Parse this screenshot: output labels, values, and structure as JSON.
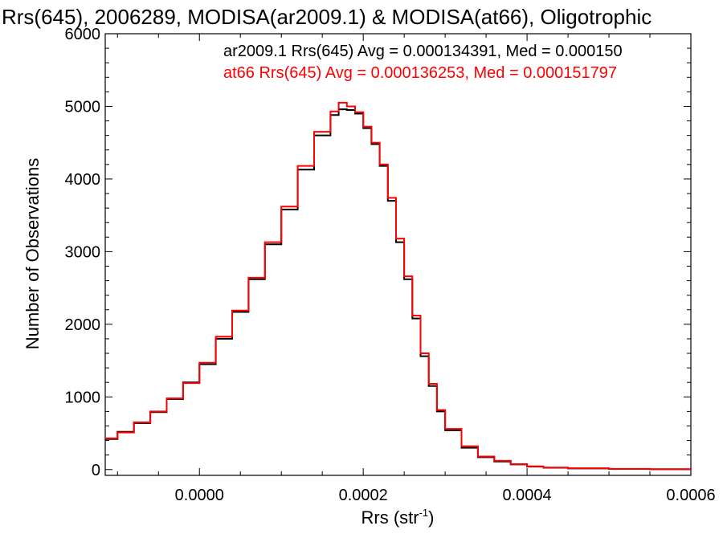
{
  "chart_data": {
    "type": "line",
    "title": "Rrs(645), 2006289, MODISA(ar2009.1) & MODISA(at66), Oligotrophic",
    "xlabel": "Rrs (str",
    "xlabel_sup": "-1",
    "xlabel_close": ")",
    "ylabel": "Number of Observations",
    "xlim": [
      -0.000115,
      0.0006
    ],
    "ylim": [
      -80,
      6000
    ],
    "x_ticks": [
      0.0,
      0.0002,
      0.0004,
      0.0006
    ],
    "x_tick_labels": [
      "0.0000",
      "0.0002",
      "0.0004",
      "0.0006"
    ],
    "y_ticks": [
      0,
      1000,
      2000,
      3000,
      4000,
      5000,
      6000
    ],
    "y_tick_labels": [
      "0",
      "1000",
      "2000",
      "3000",
      "4000",
      "5000",
      "6000"
    ],
    "legend_position": "top-right",
    "x": [
      -0.000115,
      -0.0001,
      -8e-05,
      -6e-05,
      -4e-05,
      -2e-05,
      0.0,
      2e-05,
      4e-05,
      6e-05,
      8e-05,
      0.0001,
      0.00012,
      0.00014,
      0.00016,
      0.00017,
      0.00018,
      0.00019,
      0.0002,
      0.00021,
      0.00022,
      0.00023,
      0.00024,
      0.00025,
      0.00026,
      0.00027,
      0.00028,
      0.00029,
      0.0003,
      0.00032,
      0.00034,
      0.00036,
      0.00038,
      0.0004,
      0.00042,
      0.00045,
      0.0005,
      0.00055,
      0.0006
    ],
    "series": [
      {
        "name": "ar2009.1 Rrs(645) Avg = 0.000134391, Med = 0.000150",
        "color": "#000000",
        "values": [
          420,
          520,
          640,
          790,
          970,
          1200,
          1450,
          1800,
          2170,
          2620,
          3100,
          3580,
          4130,
          4600,
          4880,
          4960,
          4950,
          4900,
          4700,
          4480,
          4180,
          3700,
          3130,
          2620,
          2080,
          1560,
          1150,
          800,
          540,
          300,
          170,
          110,
          70,
          40,
          25,
          15,
          8,
          4,
          2
        ]
      },
      {
        "name": "at66 Rrs(645) Avg = 0.000136253, Med = 0.000151797",
        "color": "#ff0000",
        "values": [
          430,
          510,
          650,
          800,
          980,
          1190,
          1470,
          1830,
          2190,
          2640,
          3130,
          3620,
          4180,
          4650,
          4930,
          5050,
          5000,
          4920,
          4720,
          4500,
          4200,
          3740,
          3180,
          2660,
          2120,
          1600,
          1180,
          820,
          560,
          320,
          180,
          120,
          75,
          45,
          28,
          18,
          10,
          5,
          3
        ]
      }
    ]
  }
}
